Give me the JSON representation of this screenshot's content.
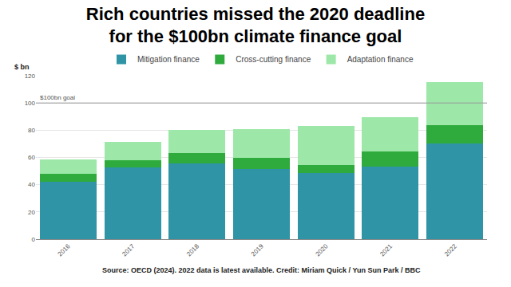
{
  "chart_data": {
    "type": "bar",
    "stacked": true,
    "title": [
      "Rich countries missed the 2020 deadline",
      "for the $100bn climate finance goal"
    ],
    "y_label": "$ bn",
    "source": "Source: OECD (2024). 2022 data is latest available. Credit: Miriam Quick / Yun Sun Park / BBC",
    "categories": [
      "2016",
      "2017",
      "2018",
      "2019",
      "2020",
      "2021",
      "2022"
    ],
    "series": [
      {
        "name": "Mitigation finance",
        "color": "#2e94a6",
        "values": [
          42,
          52.5,
          55.5,
          51.5,
          48.5,
          53.5,
          70
        ]
      },
      {
        "name": "Cross-cutting finance",
        "color": "#2fab3e",
        "values": [
          6,
          5.5,
          7.5,
          8.5,
          6,
          11,
          13.5
        ]
      },
      {
        "name": "Adaptation finance",
        "color": "#9de8a8",
        "values": [
          10.5,
          13.5,
          17,
          20.5,
          28.5,
          25,
          32
        ]
      }
    ],
    "annotations": [
      {
        "text": "$100bn goal",
        "y": 100
      }
    ],
    "ylim": [
      0,
      120
    ],
    "yticks": [
      0,
      20,
      40,
      60,
      80,
      100,
      120
    ],
    "grid": true,
    "legend": "top"
  }
}
